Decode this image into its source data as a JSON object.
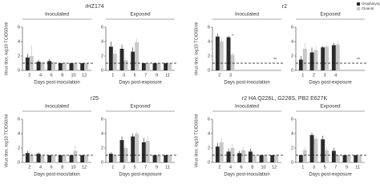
{
  "chart_data": [
    {
      "type": "bar",
      "title": "rHZ174",
      "ylabel": "Virus titer, log10 TCID50/ml",
      "ylim": [
        0,
        6
      ],
      "yticks": [
        0,
        2,
        4,
        6
      ],
      "threshold": 1,
      "groups": [
        {
          "label": "Inoculated",
          "xlabel": "Days post-inoculation",
          "categories": [
            2,
            4,
            6,
            8,
            10,
            12
          ],
          "series": [
            {
              "color": "#2b2b2b",
              "values": [
                1.8,
                1.2,
                1.3,
                1.0,
                1.0,
                1.0
              ],
              "errors": [
                0.5,
                0.3,
                0.3,
                0,
                0,
                0
              ]
            },
            {
              "color": "#c8c8c8",
              "values": [
                2.0,
                1.1,
                1.1,
                1.0,
                1.0,
                1.0
              ],
              "errors": [
                1.5,
                0.2,
                0.2,
                0,
                0,
                0
              ]
            }
          ]
        },
        {
          "label": "Exposed",
          "xlabel": "Days post-exposure",
          "categories": [
            1,
            3,
            5,
            7,
            9,
            11
          ],
          "series": [
            {
              "color": "#2b2b2b",
              "values": [
                3.3,
                3.0,
                2.6,
                1.0,
                1.0,
                1.0
              ],
              "errors": [
                0.7,
                0.6,
                0.6,
                0,
                0,
                0
              ]
            },
            {
              "color": "#c8c8c8",
              "values": [
                2.3,
                1.4,
                3.9,
                1.0,
                1.0,
                1.0
              ],
              "errors": [
                0.6,
                0.4,
                0.5,
                0,
                0,
                0
              ]
            }
          ]
        }
      ]
    },
    {
      "type": "bar",
      "title": "r2",
      "ylabel": "Virus titer, log10 TCID50/ml",
      "ylim": [
        0,
        6
      ],
      "yticks": [
        0,
        2,
        4,
        6
      ],
      "threshold": 1,
      "legend": [
        {
          "name": "Oropharyngeal",
          "color": "#2b2b2b"
        },
        {
          "name": "Cloacal",
          "color": "#c8c8c8"
        }
      ],
      "groups": [
        {
          "label": "Inoculated",
          "xlabel": "Days post-inoculation",
          "categories": [
            2,
            3
          ],
          "annotations": [
            "*",
            "**"
          ],
          "series": [
            {
              "color": "#2b2b2b",
              "values": [
                4.7,
                4.6
              ],
              "errors": [
                0.4,
                0.2
              ]
            },
            {
              "color": "#c8c8c8",
              "values": [
                4.0,
                2.2
              ],
              "errors": [
                0.6,
                0.3
              ]
            }
          ]
        },
        {
          "label": "Exposed",
          "xlabel": "Days post-exposure",
          "categories": [
            1,
            2,
            3,
            4
          ],
          "annotations": [
            "**"
          ],
          "series": [
            {
              "color": "#2b2b2b",
              "values": [
                1.5,
                2.5,
                3.2,
                3.5
              ],
              "errors": [
                0.5,
                0.7,
                0.2,
                0.3
              ]
            },
            {
              "color": "#c8c8c8",
              "values": [
                3.0,
                2.8,
                3.3,
                3.6
              ],
              "errors": [
                0.8,
                0.6,
                0.2,
                0.5
              ]
            }
          ]
        }
      ]
    },
    {
      "type": "bar",
      "title": "r25",
      "ylabel": "Virus titer, log10 TCID50/ml",
      "ylim": [
        0,
        6
      ],
      "yticks": [
        0,
        2,
        4,
        6
      ],
      "threshold": 1,
      "groups": [
        {
          "label": "Inoculated",
          "xlabel": "Days post-inoculation",
          "categories": [
            2,
            4,
            6,
            8,
            10,
            12
          ],
          "series": [
            {
              "color": "#2b2b2b",
              "values": [
                1.3,
                1.2,
                1.0,
                1.0,
                1.0,
                1.0
              ],
              "errors": [
                0.3,
                0.2,
                0,
                0,
                0,
                0
              ]
            },
            {
              "color": "#c8c8c8",
              "values": [
                1.1,
                1.0,
                1.0,
                1.0,
                1.6,
                1.0
              ],
              "errors": [
                0.2,
                0,
                0,
                0,
                0.8,
                0
              ]
            }
          ]
        },
        {
          "label": "Exposed",
          "xlabel": "Days post-exposure",
          "categories": [
            1,
            3,
            5,
            7,
            9,
            11
          ],
          "series": [
            {
              "color": "#2b2b2b",
              "values": [
                1.2,
                3.1,
                3.6,
                2.8,
                1.0,
                1.0
              ],
              "errors": [
                0.2,
                0.5,
                0.4,
                0.6,
                0,
                0
              ]
            },
            {
              "color": "#c8c8c8",
              "values": [
                1.0,
                2.0,
                4.0,
                3.0,
                1.0,
                1.0
              ],
              "errors": [
                0,
                0.4,
                0.3,
                0.7,
                0,
                0
              ]
            }
          ]
        }
      ]
    },
    {
      "type": "bar",
      "title": "r2 HA Q226L, G228S, PB2 E627K",
      "ylabel": "Virus titer, log10 TCID50/ml",
      "ylim": [
        0,
        6
      ],
      "yticks": [
        0,
        2,
        4,
        6
      ],
      "threshold": 1,
      "groups": [
        {
          "label": "Inoculated",
          "xlabel": "Days post-inoculation",
          "categories": [
            2,
            4,
            6,
            8,
            10,
            12
          ],
          "series": [
            {
              "color": "#2b2b2b",
              "values": [
                2.2,
                1.5,
                1.3,
                1.5,
                1.0,
                1.0
              ],
              "errors": [
                0.5,
                0.4,
                0.3,
                0.4,
                0,
                0
              ]
            },
            {
              "color": "#c8c8c8",
              "values": [
                2.8,
                2.0,
                1.7,
                1.0,
                1.0,
                1.0
              ],
              "errors": [
                0.6,
                0.5,
                0.4,
                0,
                0,
                0
              ]
            }
          ]
        },
        {
          "label": "Exposed",
          "xlabel": "Days post-exposure",
          "categories": [
            1,
            3,
            5,
            7,
            9,
            11
          ],
          "series": [
            {
              "color": "#2b2b2b",
              "values": [
                1.0,
                3.8,
                3.2,
                1.6,
                1.0,
                1.0
              ],
              "errors": [
                0,
                0.3,
                0.5,
                0.4,
                0,
                0
              ]
            },
            {
              "color": "#c8c8c8",
              "values": [
                1.7,
                3.3,
                1.7,
                1.0,
                1.0,
                1.0
              ],
              "errors": [
                0.5,
                0.4,
                0.4,
                0,
                0,
                0
              ]
            }
          ]
        }
      ]
    }
  ]
}
